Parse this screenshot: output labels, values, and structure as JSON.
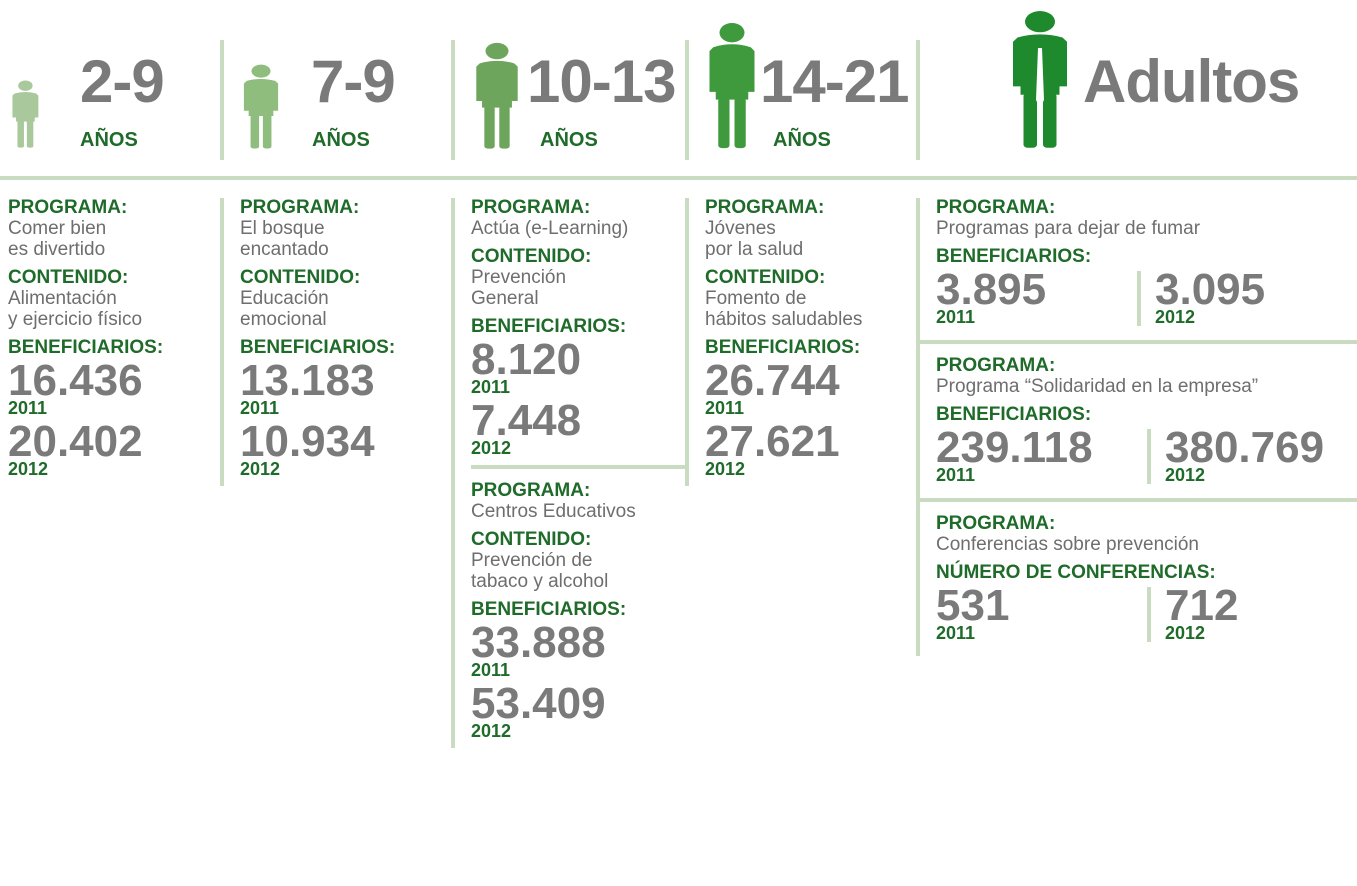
{
  "columns": [
    {
      "header": {
        "range": "2-9",
        "unit": "AÑOS"
      },
      "programs": [
        {
          "fields": [
            {
              "label": "PROGRAMA:",
              "lines": [
                "Comer bien",
                "es divertido"
              ]
            },
            {
              "label": "CONTENIDO:",
              "lines": [
                "Alimentación",
                "y ejercicio físico"
              ]
            },
            {
              "label": "BENEFICIARIOS:",
              "figures": [
                {
                  "value": "16.436",
                  "year": "2011"
                },
                {
                  "value": "20.402",
                  "year": "2012"
                }
              ]
            }
          ]
        }
      ]
    },
    {
      "header": {
        "range": "7-9",
        "unit": "AÑOS"
      },
      "programs": [
        {
          "fields": [
            {
              "label": "PROGRAMA:",
              "lines": [
                "El bosque",
                "encantado"
              ]
            },
            {
              "label": "CONTENIDO:",
              "lines": [
                "Educación",
                "emocional"
              ]
            },
            {
              "label": "BENEFICIARIOS:",
              "figures": [
                {
                  "value": "13.183",
                  "year": "2011"
                },
                {
                  "value": "10.934",
                  "year": "2012"
                }
              ]
            }
          ]
        }
      ]
    },
    {
      "header": {
        "range": "10-13",
        "unit": "AÑOS"
      },
      "programs": [
        {
          "fields": [
            {
              "label": "PROGRAMA:",
              "lines": [
                "Actúa (e-Learning)"
              ]
            },
            {
              "label": "CONTENIDO:",
              "lines": [
                "Prevención",
                "General"
              ]
            },
            {
              "label": "BENEFICIARIOS:",
              "figures": [
                {
                  "value": "8.120",
                  "year": "2011"
                },
                {
                  "value": "7.448",
                  "year": "2012"
                }
              ]
            }
          ]
        },
        {
          "fields": [
            {
              "label": "PROGRAMA:",
              "lines": [
                "Centros Educativos"
              ]
            },
            {
              "label": "CONTENIDO:",
              "lines": [
                "Prevención de",
                "tabaco y alcohol"
              ]
            },
            {
              "label": "BENEFICIARIOS:",
              "figures": [
                {
                  "value": "33.888",
                  "year": "2011"
                },
                {
                  "value": "53.409",
                  "year": "2012"
                }
              ]
            }
          ]
        }
      ]
    },
    {
      "header": {
        "range": "14-21",
        "unit": "AÑOS"
      },
      "programs": [
        {
          "fields": [
            {
              "label": "PROGRAMA:",
              "lines": [
                "Jóvenes",
                "por la salud"
              ]
            },
            {
              "label": "CONTENIDO:",
              "lines": [
                "Fomento de",
                "hábitos saludables"
              ]
            },
            {
              "label": "BENEFICIARIOS:",
              "figures": [
                {
                  "value": "26.744",
                  "year": "2011"
                },
                {
                  "value": "27.621",
                  "year": "2012"
                }
              ]
            }
          ]
        }
      ]
    },
    {
      "header": {
        "range": "Adultos"
      },
      "programs": [
        {
          "fields": [
            {
              "label": "PROGRAMA:",
              "lines": [
                "Programas para dejar de fumar"
              ]
            },
            {
              "label": "BENEFICIARIOS:",
              "figures": [
                {
                  "value": "3.895",
                  "year": "2011"
                },
                {
                  "value": "3.095",
                  "year": "2012"
                }
              ]
            }
          ]
        },
        {
          "fields": [
            {
              "label": "PROGRAMA:",
              "lines": [
                "Programa “Solidaridad en la empresa”"
              ]
            },
            {
              "label": "BENEFICIARIOS:",
              "figures": [
                {
                  "value": "239.118",
                  "year": "2011"
                },
                {
                  "value": "380.769",
                  "year": "2012"
                }
              ]
            }
          ]
        },
        {
          "fields": [
            {
              "label": "PROGRAMA:",
              "lines": [
                "Conferencias sobre prevención"
              ]
            },
            {
              "label": "NÚMERO DE CONFERENCIAS:",
              "figures": [
                {
                  "value": "531",
                  "year": "2011"
                },
                {
                  "value": "712",
                  "year": "2012"
                }
              ]
            }
          ]
        }
      ]
    }
  ]
}
